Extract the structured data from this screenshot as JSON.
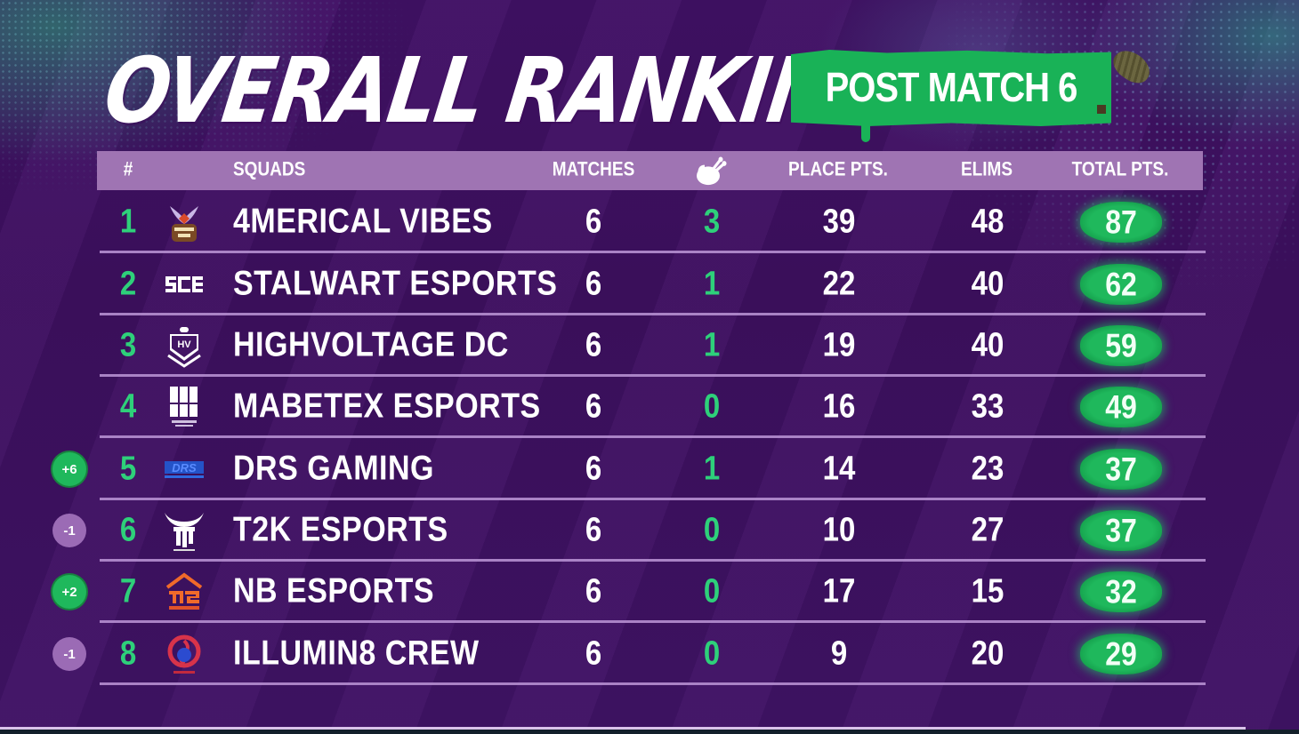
{
  "title": "OVERALL RANKING",
  "badge": "POST MATCH 6",
  "colors": {
    "background": "#3a0f58",
    "header_bar": "#9f74b3",
    "accent_green": "#1fb85c",
    "rank_green": "#2ed07a",
    "delta_down": "#9b6bb5",
    "divider": "#b68fd0"
  },
  "table": {
    "headers": {
      "rank": "#",
      "squads": "SQUADS",
      "matches": "MATCHES",
      "chicken": "chicken-dinner-icon",
      "place_pts": "PLACE PTS.",
      "elims": "ELIMS",
      "total_pts": "TOTAL PTS."
    },
    "rows": [
      {
        "delta": "",
        "delta_dir": "",
        "rank": "1",
        "logo": "4merical-vibes-logo",
        "squad": "4MERICAL VIBES",
        "matches": "6",
        "wins": "3",
        "place_pts": "39",
        "elims": "48",
        "total_pts": "87"
      },
      {
        "delta": "",
        "delta_dir": "",
        "rank": "2",
        "logo": "stalwart-esports-logo",
        "squad": "STALWART ESPORTS",
        "matches": "6",
        "wins": "1",
        "place_pts": "22",
        "elims": "40",
        "total_pts": "62"
      },
      {
        "delta": "",
        "delta_dir": "",
        "rank": "3",
        "logo": "highvoltage-dc-logo",
        "squad": "HIGHVOLTAGE DC",
        "matches": "6",
        "wins": "1",
        "place_pts": "19",
        "elims": "40",
        "total_pts": "59"
      },
      {
        "delta": "",
        "delta_dir": "",
        "rank": "4",
        "logo": "mabetex-esports-logo",
        "squad": "MABETEX ESPORTS",
        "matches": "6",
        "wins": "0",
        "place_pts": "16",
        "elims": "33",
        "total_pts": "49"
      },
      {
        "delta": "+6",
        "delta_dir": "up",
        "rank": "5",
        "logo": "drs-gaming-logo",
        "squad": "DRS GAMING",
        "matches": "6",
        "wins": "1",
        "place_pts": "14",
        "elims": "23",
        "total_pts": "37"
      },
      {
        "delta": "-1",
        "delta_dir": "down",
        "rank": "6",
        "logo": "t2k-esports-logo",
        "squad": "T2K ESPORTS",
        "matches": "6",
        "wins": "0",
        "place_pts": "10",
        "elims": "27",
        "total_pts": "37"
      },
      {
        "delta": "+2",
        "delta_dir": "up",
        "rank": "7",
        "logo": "nb-esports-logo",
        "squad": "NB ESPORTS",
        "matches": "6",
        "wins": "0",
        "place_pts": "17",
        "elims": "15",
        "total_pts": "32"
      },
      {
        "delta": "-1",
        "delta_dir": "down",
        "rank": "8",
        "logo": "illumin8-crew-logo",
        "squad": "ILLUMIN8 CREW",
        "matches": "6",
        "wins": "0",
        "place_pts": "9",
        "elims": "20",
        "total_pts": "29"
      }
    ]
  }
}
